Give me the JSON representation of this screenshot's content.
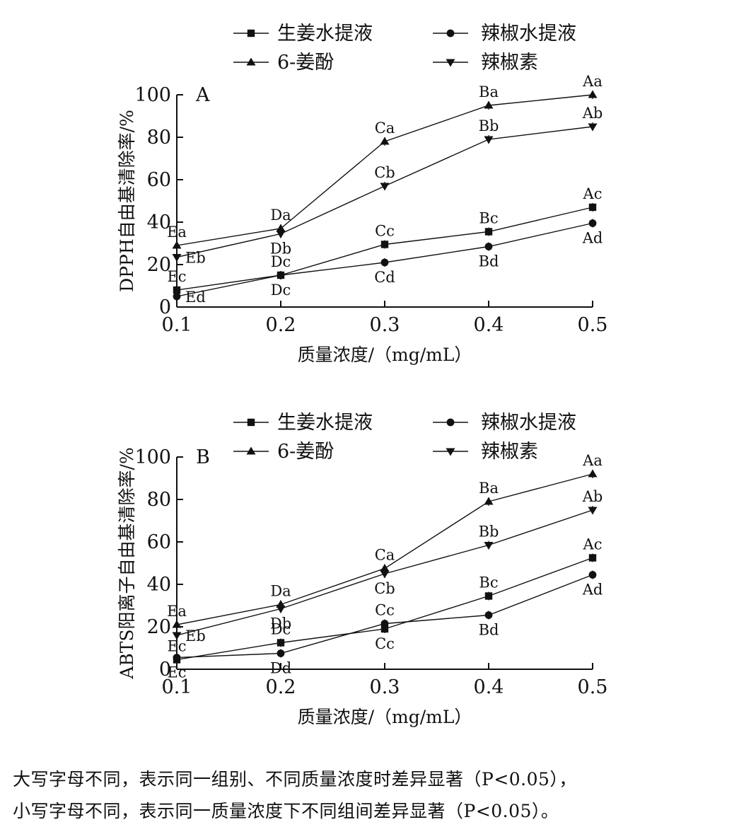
{
  "legend_entries": [
    "生姜水提液",
    "辣椒水提液",
    "6-姜酚",
    "辣椒素"
  ],
  "footnote": {
    "line1": "大写字母不同，表示同一组别、不同质量浓度时差异显著（P<0.05），",
    "line2": "小写字母不同，表示同一质量浓度下不同组间差异显著（P<0.05）。"
  },
  "chart_data": [
    {
      "type": "line",
      "panel_label": "A",
      "xlabel": "质量浓度/（mg/mL）",
      "ylabel": "DPPH自由基清除率/%",
      "x": [
        0.1,
        0.2,
        0.3,
        0.4,
        0.5
      ],
      "x_ticks": [
        "0.1",
        "0.2",
        "0.3",
        "0.4",
        "0.5"
      ],
      "y_ticks": [
        "0",
        "20",
        "40",
        "60",
        "80",
        "100"
      ],
      "xlim": [
        0.1,
        0.5
      ],
      "ylim": [
        0,
        100
      ],
      "grid": false,
      "legend_position": "top",
      "series": [
        {
          "name": "生姜水提液",
          "marker": "square",
          "values": [
            8,
            15,
            29.5,
            35.5,
            47
          ],
          "labels": [
            "Ec",
            "Dc",
            "Cc",
            "Bc",
            "Ac"
          ],
          "label_side": [
            "above",
            "above",
            "above",
            "above",
            "above"
          ]
        },
        {
          "name": "辣椒水提液",
          "marker": "circle",
          "values": [
            5,
            15,
            21,
            28.5,
            39.5
          ],
          "labels": [
            "Ed",
            "Dc",
            "Cd",
            "Bd",
            "Ad"
          ],
          "label_side": [
            "right",
            "below",
            "below",
            "below",
            "below"
          ]
        },
        {
          "name": "6-姜酚",
          "marker": "triangle-up",
          "values": [
            29,
            37,
            78,
            95,
            100
          ],
          "labels": [
            "Ea",
            "Da",
            "Ca",
            "Ba",
            "Aa"
          ],
          "label_side": [
            "above",
            "above",
            "above",
            "above",
            "above"
          ]
        },
        {
          "name": "辣椒素",
          "marker": "triangle-down",
          "values": [
            23.5,
            34.5,
            57,
            79,
            85
          ],
          "labels": [
            "Eb",
            "Db",
            "Cb",
            "Bb",
            "Ab"
          ],
          "label_side": [
            "right",
            "below",
            "above",
            "above",
            "above"
          ]
        }
      ]
    },
    {
      "type": "line",
      "panel_label": "B",
      "xlabel": "质量浓度/（mg/mL）",
      "ylabel": "ABTS阳离子自由基清除率/%",
      "x": [
        0.1,
        0.2,
        0.3,
        0.4,
        0.5
      ],
      "x_ticks": [
        "0.1",
        "0.2",
        "0.3",
        "0.4",
        "0.5"
      ],
      "y_ticks": [
        "0",
        "20",
        "40",
        "60",
        "80",
        "100"
      ],
      "xlim": [
        0.1,
        0.5
      ],
      "ylim": [
        0,
        100
      ],
      "grid": false,
      "legend_position": "top",
      "series": [
        {
          "name": "生姜水提液",
          "marker": "square",
          "values": [
            4.5,
            12.5,
            19,
            34.5,
            52.5
          ],
          "labels": [
            "Ec",
            "Dc",
            "Cc",
            "Bc",
            "Ac"
          ],
          "label_side": [
            "above",
            "above",
            "below",
            "above",
            "above"
          ]
        },
        {
          "name": "辣椒水提液",
          "marker": "circle",
          "values": [
            5.5,
            7.5,
            21.5,
            25.5,
            44.5
          ],
          "labels": [
            "Ec",
            "Dd",
            "Cc",
            "Bd",
            "Ad"
          ],
          "label_side": [
            "below",
            "below",
            "above",
            "below",
            "below"
          ]
        },
        {
          "name": "6-姜酚",
          "marker": "triangle-up",
          "values": [
            21,
            30.5,
            47.5,
            79,
            92
          ],
          "labels": [
            "Ea",
            "Da",
            "Ca",
            "Ba",
            "Aa"
          ],
          "label_side": [
            "above",
            "above",
            "above",
            "above",
            "above"
          ]
        },
        {
          "name": "辣椒素",
          "marker": "triangle-down",
          "values": [
            16,
            28.5,
            45,
            58.5,
            75
          ],
          "labels": [
            "Eb",
            "Db",
            "Cb",
            "Bb",
            "Ab"
          ],
          "label_side": [
            "right",
            "below",
            "below",
            "above",
            "above"
          ]
        }
      ]
    }
  ]
}
